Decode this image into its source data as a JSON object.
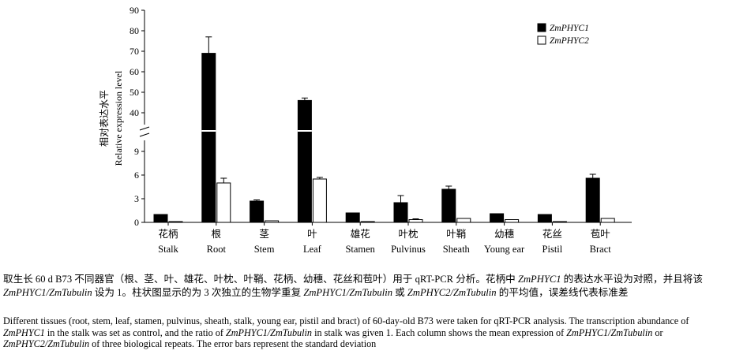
{
  "chart_data": {
    "type": "bar",
    "ylabel_zh": "相对表达水平",
    "ylabel_en": "Relative expression level",
    "ylim_upper": [
      35,
      90
    ],
    "yticks_upper": [
      40,
      50,
      60,
      70,
      80,
      90
    ],
    "ylim_lower": [
      0,
      10
    ],
    "yticks_lower": [
      0,
      3,
      6,
      9
    ],
    "y_axis_break": true,
    "legend_position": "top-right",
    "categories_zh": [
      "花柄",
      "根",
      "茎",
      "叶",
      "雄花",
      "叶枕",
      "叶鞘",
      "幼穗",
      "花丝",
      "苞叶"
    ],
    "categories_en": [
      "Stalk",
      "Root",
      "Stem",
      "Leaf",
      "Stamen",
      "Pulvinus",
      "Sheath",
      "Young ear",
      "Pistil",
      "Bract"
    ],
    "series": [
      {
        "name": "ZmPHYC1",
        "color": "#000000",
        "values": [
          1.0,
          69.0,
          2.7,
          46.0,
          1.2,
          2.5,
          4.2,
          1.1,
          1.0,
          5.6
        ],
        "errors": [
          0.05,
          8.0,
          0.15,
          1.2,
          0.05,
          0.9,
          0.4,
          0.05,
          0.05,
          0.5
        ]
      },
      {
        "name": "ZmPHYC2",
        "color": "#ffffff",
        "values": [
          0.1,
          5.0,
          0.2,
          5.5,
          0.1,
          0.35,
          0.5,
          0.35,
          0.1,
          0.5
        ],
        "errors": [
          0.02,
          0.6,
          0.05,
          0.2,
          0.02,
          0.1,
          0.05,
          0.05,
          0.02,
          0.05
        ]
      }
    ]
  },
  "caption": {
    "zh_parts": [
      {
        "t": "取生长 60 d B73 不同器官（根、茎、叶、雄花、叶枕、叶鞘、花柄、幼穗、花丝和苞叶）用于 qRT-PCR 分析。花柄中 ",
        "i": false
      },
      {
        "t": "ZmPHYC1",
        "i": true
      },
      {
        "t": " 的表达水平设为对照，并且将该 ",
        "i": false
      },
      {
        "t": "ZmPHYC1/ZmTubulin",
        "i": true
      },
      {
        "t": " 设为 1。柱状图显示的为 3 次独立的生物学重复 ",
        "i": false
      },
      {
        "t": "ZmPHYC1/ZmTubulin",
        "i": true
      },
      {
        "t": " 或 ",
        "i": false
      },
      {
        "t": "ZmPHYC2/ZmTubulin",
        "i": true
      },
      {
        "t": " 的平均值，误差线代表标准差",
        "i": false
      }
    ],
    "en_parts": [
      {
        "t": "Different tissues (root, stem, leaf, stamen, pulvinus, sheath, stalk, young ear, pistil and bract) of 60-day-old B73 were taken for qRT-PCR analysis. The transcription abundance of ",
        "i": false
      },
      {
        "t": "ZmPHYC1",
        "i": true
      },
      {
        "t": " in the stalk was set as control, and the ratio of ",
        "i": false
      },
      {
        "t": "ZmPHYC1/ZmTubulin",
        "i": true
      },
      {
        "t": " in stalk was given 1. Each column shows the mean expression of ",
        "i": false
      },
      {
        "t": "ZmPHYC1/ZmTubulin",
        "i": true
      },
      {
        "t": " or ",
        "i": false
      },
      {
        "t": "ZmPHYC2/ZmTubulin",
        "i": true
      },
      {
        "t": " of three biological repeats. The error bars represent the standard deviation",
        "i": false
      }
    ]
  }
}
